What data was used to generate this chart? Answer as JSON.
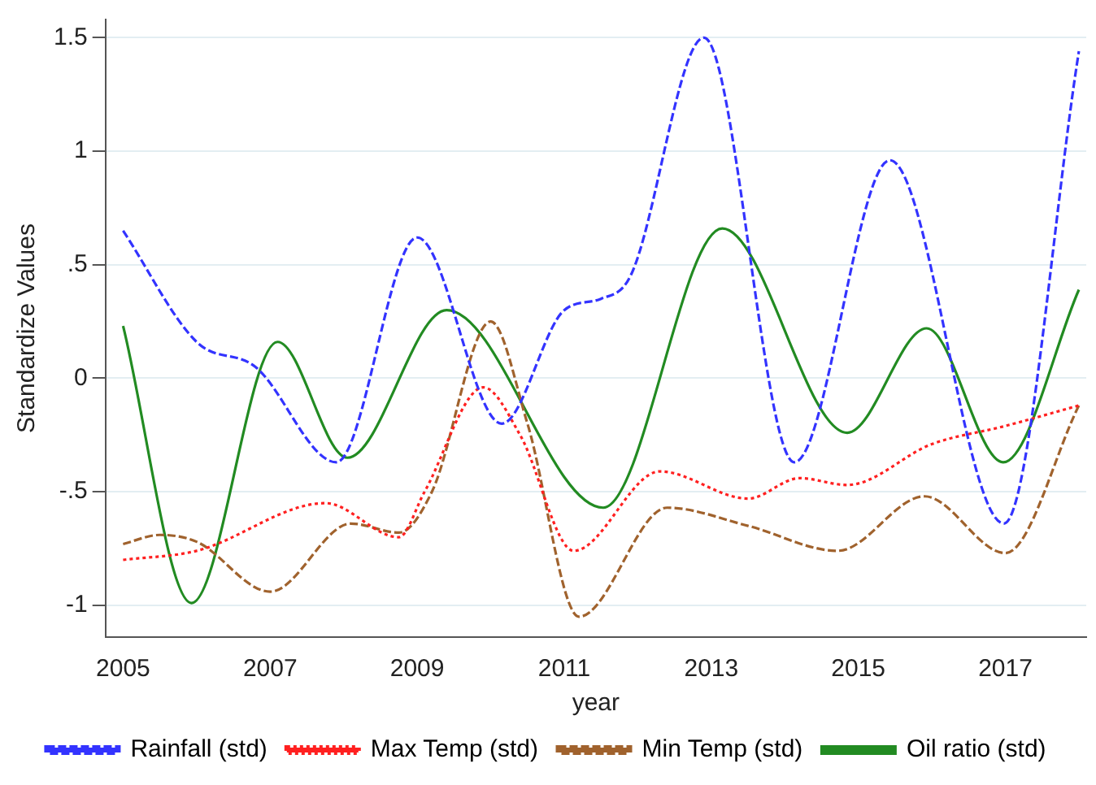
{
  "chart_data": {
    "type": "line",
    "xlabel": "year",
    "ylabel": "Standardize Values",
    "xlim": [
      2004.76,
      2018.1
    ],
    "ylim": [
      -1.14,
      1.58
    ],
    "xticks": [
      2005,
      2007,
      2009,
      2011,
      2013,
      2015,
      2017
    ],
    "yticks": [
      {
        "value": -1,
        "label": "-1"
      },
      {
        "value": -0.5,
        "label": "-.5"
      },
      0,
      {
        "value": 0.5,
        "label": ".5"
      },
      1,
      1.5
    ],
    "grid": "y",
    "legend": "bottom",
    "marker": "none",
    "series": [
      {
        "name": "Rainfall (std)",
        "color": "#3333ff",
        "line_style": "dashed",
        "x": [
          2005,
          2006,
          2006.8,
          2007.9,
          2009,
          2010.15,
          2011,
          2011.5,
          2011.9,
          2012.9,
          2014.13,
          2015.43,
          2016.98,
          2018
        ],
        "values": [
          0.65,
          0.16,
          0.05,
          -0.37,
          0.62,
          -0.2,
          0.3,
          0.35,
          0.45,
          1.5,
          -0.37,
          0.96,
          -0.64,
          1.44
        ]
      },
      {
        "name": "Max Temp (std)",
        "color": "#ff2020",
        "line_style": "dotted",
        "x": [
          2005,
          2006,
          2007.75,
          2008.75,
          2009.1,
          2009.9,
          2010.4,
          2011.13,
          2012.3,
          2013.5,
          2014.2,
          2014.85,
          2016,
          2017,
          2018
        ],
        "values": [
          -0.8,
          -0.76,
          -0.55,
          -0.7,
          -0.5,
          -0.04,
          -0.25,
          -0.76,
          -0.41,
          -0.53,
          -0.44,
          -0.47,
          -0.29,
          -0.21,
          -0.12
        ]
      },
      {
        "name": "Min Temp (std)",
        "color": "#a0622d",
        "line_style": "dashed",
        "x": [
          2005,
          2005.5,
          2006,
          2007,
          2008.1,
          2008.75,
          2009.2,
          2010,
          2010.5,
          2011.2,
          2012.4,
          2013.5,
          2014.72,
          2015.9,
          2017,
          2018
        ],
        "values": [
          -0.73,
          -0.69,
          -0.72,
          -0.94,
          -0.64,
          -0.68,
          -0.5,
          0.25,
          -0.2,
          -1.05,
          -0.57,
          -0.65,
          -0.76,
          -0.52,
          -0.77,
          -0.12
        ]
      },
      {
        "name": "Oil ratio (std)",
        "color": "#228b22",
        "line_style": "solid",
        "x": [
          2005,
          2005.93,
          2007.1,
          2008.05,
          2009.4,
          2011.53,
          2013.15,
          2014.85,
          2015.93,
          2016.97,
          2018
        ],
        "values": [
          0.23,
          -0.99,
          0.16,
          -0.35,
          0.3,
          -0.57,
          0.66,
          -0.24,
          0.22,
          -0.37,
          0.39
        ]
      }
    ]
  }
}
